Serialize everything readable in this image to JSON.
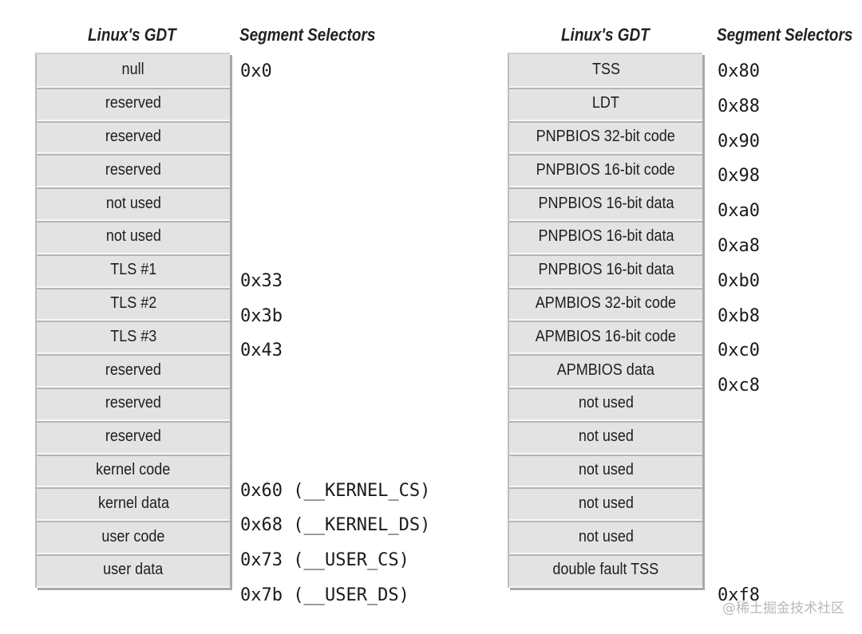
{
  "left": {
    "header_gdt": "Linux's GDT",
    "header_selectors": "Segment Selectors",
    "entries": [
      {
        "label": "null",
        "selector": "0x0"
      },
      {
        "label": "reserved",
        "selector": ""
      },
      {
        "label": "reserved",
        "selector": ""
      },
      {
        "label": "reserved",
        "selector": ""
      },
      {
        "label": "not used",
        "selector": ""
      },
      {
        "label": "not used",
        "selector": ""
      },
      {
        "label": "TLS #1",
        "selector": "0x33"
      },
      {
        "label": "TLS #2",
        "selector": "0x3b"
      },
      {
        "label": "TLS #3",
        "selector": "0x43"
      },
      {
        "label": "reserved",
        "selector": ""
      },
      {
        "label": "reserved",
        "selector": ""
      },
      {
        "label": "reserved",
        "selector": ""
      },
      {
        "label": "kernel code",
        "selector": "0x60 (__KERNEL_CS)"
      },
      {
        "label": "kernel data",
        "selector": "0x68 (__KERNEL_DS)"
      },
      {
        "label": "user code",
        "selector": "0x73 (__USER_CS)"
      },
      {
        "label": "user data",
        "selector": "0x7b (__USER_DS)"
      }
    ]
  },
  "right": {
    "header_gdt": "Linux's GDT",
    "header_selectors": "Segment Selectors",
    "entries": [
      {
        "label": "TSS",
        "selector": "0x80"
      },
      {
        "label": "LDT",
        "selector": "0x88"
      },
      {
        "label": "PNPBIOS 32-bit code",
        "selector": "0x90"
      },
      {
        "label": "PNPBIOS 16-bit code",
        "selector": "0x98"
      },
      {
        "label": "PNPBIOS 16-bit data",
        "selector": "0xa0"
      },
      {
        "label": "PNPBIOS 16-bit data",
        "selector": "0xa8"
      },
      {
        "label": "PNPBIOS 16-bit data",
        "selector": "0xb0"
      },
      {
        "label": "APMBIOS 32-bit code",
        "selector": "0xb8"
      },
      {
        "label": "APMBIOS 16-bit code",
        "selector": "0xc0"
      },
      {
        "label": "APMBIOS data",
        "selector": "0xc8"
      },
      {
        "label": "not used",
        "selector": ""
      },
      {
        "label": "not used",
        "selector": ""
      },
      {
        "label": "not used",
        "selector": ""
      },
      {
        "label": "not used",
        "selector": ""
      },
      {
        "label": "not used",
        "selector": ""
      },
      {
        "label": "double fault TSS",
        "selector": "0xf8"
      }
    ]
  },
  "watermark": "@稀土掘金技术社区"
}
